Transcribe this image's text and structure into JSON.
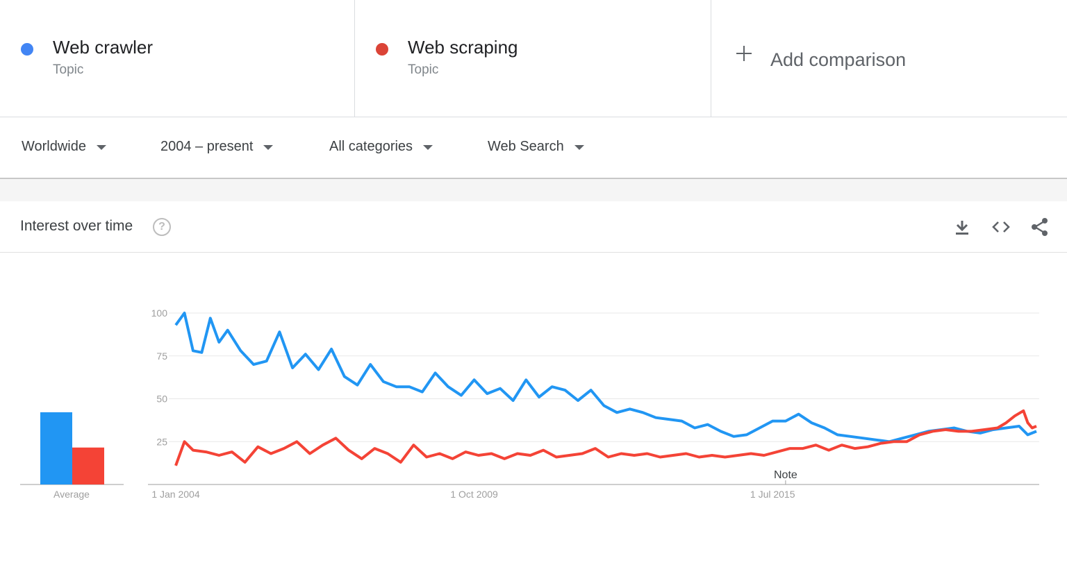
{
  "comparison": {
    "terms": [
      {
        "name": "Web crawler",
        "type": "Topic",
        "color": "#4285f4"
      },
      {
        "name": "Web scraping",
        "type": "Topic",
        "color": "#db4437"
      }
    ],
    "add_label": "Add comparison"
  },
  "filters": {
    "region": "Worldwide",
    "time_range": "2004 – present",
    "category": "All categories",
    "search_type": "Web Search"
  },
  "card": {
    "title": "Interest over time",
    "help_icon": "help-circle-icon",
    "actions": [
      "download-icon",
      "embed-code-icon",
      "share-icon"
    ]
  },
  "chart_data": {
    "type": "line",
    "title": "",
    "x_tick_labels": [
      "1 Jan 2004",
      "1 Oct 2009",
      "1 Jul 2015"
    ],
    "x_range": [
      "2004-01",
      "2020-08"
    ],
    "ylim": [
      0,
      100
    ],
    "y_ticks": [
      25,
      50,
      75,
      100
    ],
    "grid": true,
    "note_label": "Note",
    "note_x": "2015-10",
    "average_label": "Average",
    "averages": [
      {
        "name": "Web crawler",
        "value": 43
      },
      {
        "name": "Web scraping",
        "value": 22
      }
    ],
    "series": [
      {
        "name": "Web crawler",
        "color": "#2196f3",
        "points": [
          [
            "2004-01",
            93
          ],
          [
            "2004-03",
            100
          ],
          [
            "2004-05",
            78
          ],
          [
            "2004-07",
            77
          ],
          [
            "2004-09",
            97
          ],
          [
            "2004-11",
            83
          ],
          [
            "2005-01",
            90
          ],
          [
            "2005-04",
            78
          ],
          [
            "2005-07",
            70
          ],
          [
            "2005-10",
            72
          ],
          [
            "2006-01",
            89
          ],
          [
            "2006-04",
            68
          ],
          [
            "2006-07",
            76
          ],
          [
            "2006-10",
            67
          ],
          [
            "2007-01",
            79
          ],
          [
            "2007-04",
            63
          ],
          [
            "2007-07",
            58
          ],
          [
            "2007-10",
            70
          ],
          [
            "2008-01",
            60
          ],
          [
            "2008-04",
            57
          ],
          [
            "2008-07",
            57
          ],
          [
            "2008-10",
            54
          ],
          [
            "2009-01",
            65
          ],
          [
            "2009-04",
            57
          ],
          [
            "2009-07",
            52
          ],
          [
            "2009-10",
            61
          ],
          [
            "2010-01",
            53
          ],
          [
            "2010-04",
            56
          ],
          [
            "2010-07",
            49
          ],
          [
            "2010-10",
            61
          ],
          [
            "2011-01",
            51
          ],
          [
            "2011-04",
            57
          ],
          [
            "2011-07",
            55
          ],
          [
            "2011-10",
            49
          ],
          [
            "2012-01",
            55
          ],
          [
            "2012-04",
            46
          ],
          [
            "2012-07",
            42
          ],
          [
            "2012-10",
            44
          ],
          [
            "2013-01",
            42
          ],
          [
            "2013-04",
            39
          ],
          [
            "2013-07",
            38
          ],
          [
            "2013-10",
            37
          ],
          [
            "2014-01",
            33
          ],
          [
            "2014-04",
            35
          ],
          [
            "2014-07",
            31
          ],
          [
            "2014-10",
            28
          ],
          [
            "2015-01",
            29
          ],
          [
            "2015-04",
            33
          ],
          [
            "2015-07",
            37
          ],
          [
            "2015-10",
            37
          ],
          [
            "2016-01",
            41
          ],
          [
            "2016-04",
            36
          ],
          [
            "2016-07",
            33
          ],
          [
            "2016-10",
            29
          ],
          [
            "2017-01",
            28
          ],
          [
            "2017-04",
            27
          ],
          [
            "2017-07",
            26
          ],
          [
            "2017-10",
            25
          ],
          [
            "2018-01",
            27
          ],
          [
            "2018-04",
            29
          ],
          [
            "2018-07",
            31
          ],
          [
            "2018-10",
            32
          ],
          [
            "2019-01",
            33
          ],
          [
            "2019-04",
            31
          ],
          [
            "2019-07",
            30
          ],
          [
            "2019-10",
            32
          ],
          [
            "2020-01",
            33
          ],
          [
            "2020-04",
            34
          ],
          [
            "2020-06",
            29
          ],
          [
            "2020-08",
            31
          ]
        ]
      },
      {
        "name": "Web scraping",
        "color": "#f44336",
        "points": [
          [
            "2004-01",
            11
          ],
          [
            "2004-03",
            25
          ],
          [
            "2004-05",
            20
          ],
          [
            "2004-08",
            19
          ],
          [
            "2004-11",
            17
          ],
          [
            "2005-02",
            19
          ],
          [
            "2005-05",
            13
          ],
          [
            "2005-08",
            22
          ],
          [
            "2005-11",
            18
          ],
          [
            "2006-02",
            21
          ],
          [
            "2006-05",
            25
          ],
          [
            "2006-08",
            18
          ],
          [
            "2006-11",
            23
          ],
          [
            "2007-02",
            27
          ],
          [
            "2007-05",
            20
          ],
          [
            "2007-08",
            15
          ],
          [
            "2007-11",
            21
          ],
          [
            "2008-02",
            18
          ],
          [
            "2008-05",
            13
          ],
          [
            "2008-08",
            23
          ],
          [
            "2008-11",
            16
          ],
          [
            "2009-02",
            18
          ],
          [
            "2009-05",
            15
          ],
          [
            "2009-08",
            19
          ],
          [
            "2009-11",
            17
          ],
          [
            "2010-02",
            18
          ],
          [
            "2010-05",
            15
          ],
          [
            "2010-08",
            18
          ],
          [
            "2010-11",
            17
          ],
          [
            "2011-02",
            20
          ],
          [
            "2011-05",
            16
          ],
          [
            "2011-08",
            17
          ],
          [
            "2011-11",
            18
          ],
          [
            "2012-02",
            21
          ],
          [
            "2012-05",
            16
          ],
          [
            "2012-08",
            18
          ],
          [
            "2012-11",
            17
          ],
          [
            "2013-02",
            18
          ],
          [
            "2013-05",
            16
          ],
          [
            "2013-08",
            17
          ],
          [
            "2013-11",
            18
          ],
          [
            "2014-02",
            16
          ],
          [
            "2014-05",
            17
          ],
          [
            "2014-08",
            16
          ],
          [
            "2014-11",
            17
          ],
          [
            "2015-02",
            18
          ],
          [
            "2015-05",
            17
          ],
          [
            "2015-08",
            19
          ],
          [
            "2015-11",
            21
          ],
          [
            "2016-02",
            21
          ],
          [
            "2016-05",
            23
          ],
          [
            "2016-08",
            20
          ],
          [
            "2016-11",
            23
          ],
          [
            "2017-02",
            21
          ],
          [
            "2017-05",
            22
          ],
          [
            "2017-08",
            24
          ],
          [
            "2017-11",
            25
          ],
          [
            "2018-02",
            25
          ],
          [
            "2018-05",
            29
          ],
          [
            "2018-08",
            31
          ],
          [
            "2018-11",
            32
          ],
          [
            "2019-02",
            31
          ],
          [
            "2019-05",
            31
          ],
          [
            "2019-08",
            32
          ],
          [
            "2019-11",
            33
          ],
          [
            "2020-01",
            36
          ],
          [
            "2020-03",
            40
          ],
          [
            "2020-05",
            43
          ],
          [
            "2020-06",
            36
          ],
          [
            "2020-07",
            33
          ],
          [
            "2020-08",
            34
          ]
        ]
      }
    ]
  }
}
